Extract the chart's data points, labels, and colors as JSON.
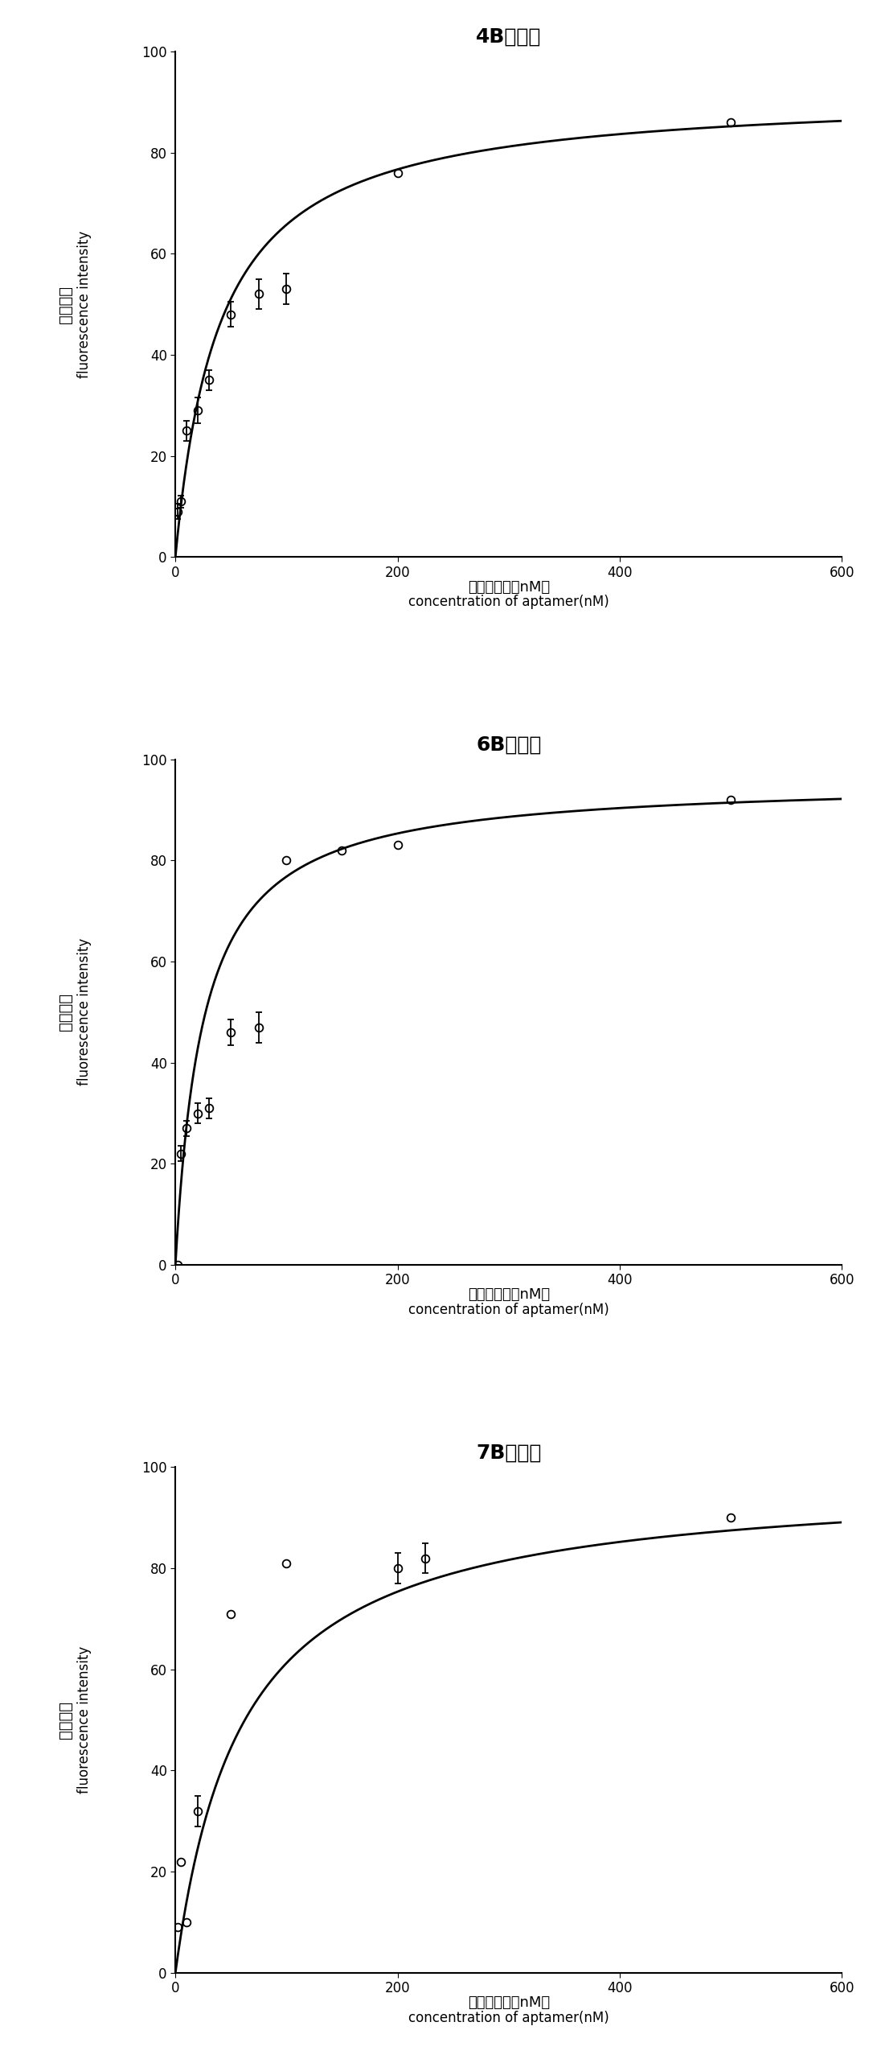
{
  "charts": [
    {
      "title": "4B适配子",
      "data_x": [
        2,
        5,
        10,
        20,
        30,
        50,
        75,
        100,
        200,
        500
      ],
      "data_y": [
        9,
        11,
        25,
        29,
        35,
        48,
        52,
        53,
        76,
        86
      ],
      "data_yerr": [
        1.5,
        1.2,
        2.0,
        2.5,
        2.0,
        2.5,
        3.0,
        3.0,
        0,
        0
      ],
      "has_errbar": [
        true,
        true,
        true,
        true,
        true,
        true,
        true,
        true,
        false,
        false
      ],
      "Bmax": 92,
      "Kd": 40
    },
    {
      "title": "6B适配子",
      "data_x": [
        2,
        5,
        10,
        20,
        30,
        50,
        75,
        100,
        150,
        200,
        500
      ],
      "data_y": [
        0,
        22,
        27,
        30,
        31,
        46,
        47,
        80,
        82,
        83,
        92
      ],
      "data_yerr": [
        0,
        1.5,
        1.5,
        2.0,
        2.0,
        2.5,
        3.0,
        0,
        0,
        0,
        0
      ],
      "has_errbar": [
        false,
        true,
        true,
        true,
        true,
        true,
        true,
        false,
        false,
        false,
        false
      ],
      "Bmax": 96,
      "Kd": 25
    },
    {
      "title": "7B适配子",
      "data_x": [
        2,
        5,
        10,
        20,
        50,
        100,
        200,
        225,
        500
      ],
      "data_y": [
        9,
        22,
        10,
        32,
        71,
        81,
        80,
        82,
        90
      ],
      "data_yerr": [
        0,
        0,
        0,
        3.0,
        0,
        0,
        3.0,
        3.0,
        0
      ],
      "has_errbar": [
        false,
        false,
        false,
        true,
        false,
        false,
        true,
        true,
        false
      ],
      "Bmax": 98,
      "Kd": 60
    }
  ],
  "xlabel_cn": "适配子浓度（nM）",
  "xlabel_en": "concentration of aptamer(nM)",
  "ylabel_cn": "荧光强度",
  "ylabel_en": "fluorescence intensity",
  "xlim": [
    0,
    600
  ],
  "ylim": [
    0,
    100
  ],
  "xticks": [
    0,
    200,
    400,
    600
  ],
  "yticks": [
    0,
    20,
    40,
    60,
    80,
    100
  ],
  "title_fontsize": 18,
  "label_fontsize": 12,
  "tick_fontsize": 12,
  "line_color": "black",
  "marker_color": "none",
  "marker_edge_color": "black",
  "marker_size": 7,
  "line_width": 2.0
}
